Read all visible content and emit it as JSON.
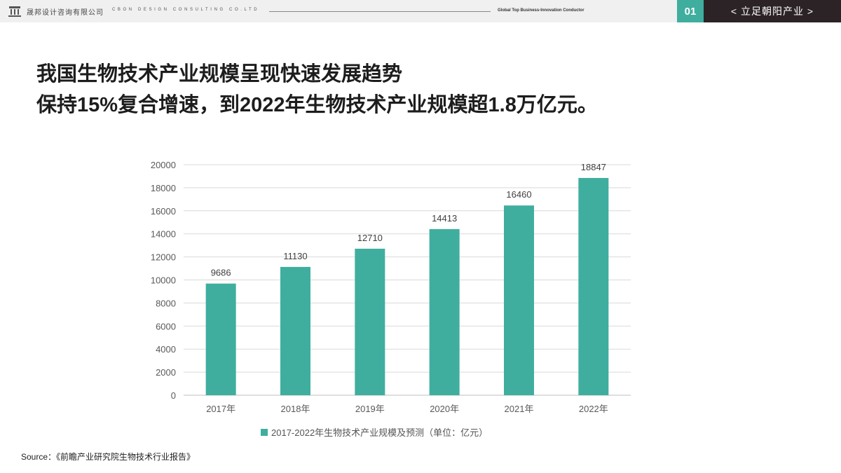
{
  "header": {
    "company_cn": "晟邦设计咨询有限公司",
    "company_en": "CBON DESIGN CONSULTING CO.LTD",
    "tagline": "Global Top Business-Innovation Conductor",
    "page_number": "01",
    "section_tag": "< 立足朝阳产业 >"
  },
  "headline": {
    "line1": "我国生物技术产业规模呈现快速发展趋势",
    "line2": "保持15%复合增速，到2022年生物技术产业规模超1.8万亿元。"
  },
  "colors": {
    "accent": "#3fae9f",
    "dark": "#2c2326",
    "grid": "#d9d9d9"
  },
  "chart_data": {
    "type": "bar",
    "categories": [
      "2017年",
      "2018年",
      "2019年",
      "2020年",
      "2021年",
      "2022年"
    ],
    "series": [
      {
        "name": "2017-2022年生物技术产业规模及预测（单位：亿元）",
        "values": [
          9686,
          11130,
          12710,
          14413,
          16460,
          18847
        ]
      }
    ],
    "yticks": [
      0,
      2000,
      4000,
      6000,
      8000,
      10000,
      12000,
      14000,
      16000,
      18000,
      20000
    ],
    "ylim": [
      0,
      20000
    ],
    "grid": true,
    "legend": "bottom",
    "data_labels": true
  },
  "source": "Source：《前瞻产业研究院生物技术行业报告》"
}
